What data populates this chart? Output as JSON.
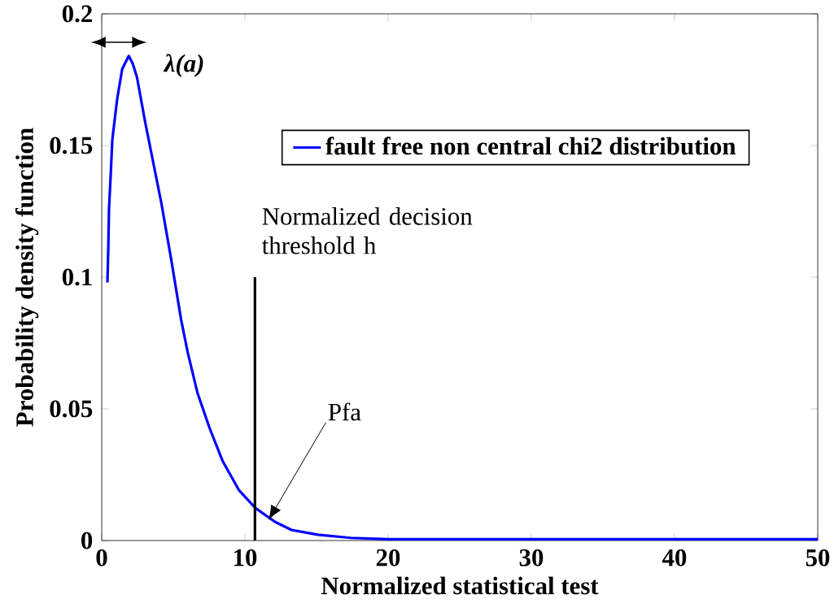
{
  "chart_data": {
    "type": "line",
    "xlabel": "Normalized statistical test",
    "ylabel": "Probability density function",
    "x": [
      0.4,
      0.46,
      0.51,
      0.63,
      0.74,
      0.91,
      1.09,
      1.43,
      1.89,
      2.17,
      2.46,
      3.03,
      3.6,
      4.17,
      4.86,
      5.54,
      6.0,
      6.69,
      7.54,
      8.46,
      9.6,
      10.74,
      12.1,
      13.26,
      15.1,
      17.4,
      20,
      30,
      40,
      50
    ],
    "series": [
      {
        "name": "fault free non central chi2 distribution",
        "color": "#0000ff",
        "values": [
          0.098,
          0.111,
          0.126,
          0.139,
          0.152,
          0.16,
          0.168,
          0.179,
          0.184,
          0.181,
          0.176,
          0.159,
          0.1435,
          0.128,
          0.1065,
          0.084,
          0.0716,
          0.056,
          0.0426,
          0.03,
          0.019,
          0.0123,
          0.0071,
          0.004,
          0.0022,
          0.001,
          0.0005,
          0.0005,
          0.0005,
          0.0005
        ]
      },
      {
        "color": "#000000",
        "x": [
          10.7,
          10.7
        ],
        "values": [
          0,
          0.1
        ]
      }
    ],
    "xlim": [
      0,
      50
    ],
    "ylim": [
      0,
      0.2
    ],
    "xticks": [
      0,
      10,
      20,
      30,
      40,
      50
    ],
    "yticks": [
      0,
      0.05,
      0.1,
      0.15,
      0.2
    ],
    "legend": "top right",
    "grid": false,
    "marker": "none",
    "line_style": "solid",
    "annotations": [
      "λ(a)",
      {
        "text": "Normalized decision threshold h",
        "x": 10.7,
        "y": 0.1
      },
      "Pfa"
    ]
  }
}
